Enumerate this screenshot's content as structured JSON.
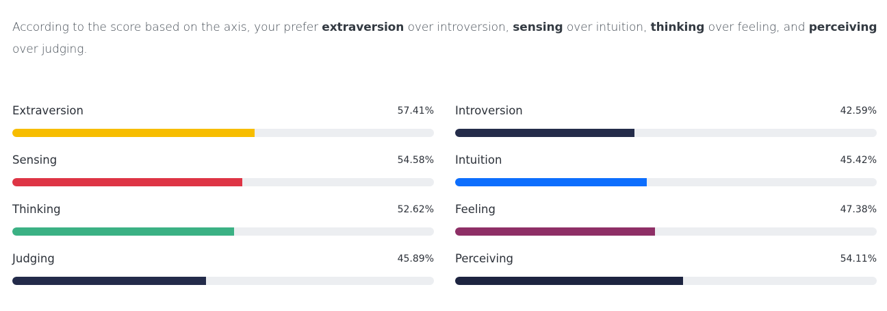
{
  "intro": [
    {
      "text": "According to the score based on the axis, your prefer ",
      "bold": false
    },
    {
      "text": "extraversion",
      "bold": true
    },
    {
      "text": " over introversion, ",
      "bold": false
    },
    {
      "text": "sensing",
      "bold": true
    },
    {
      "text": " over intuition, ",
      "bold": false
    },
    {
      "text": "thinking",
      "bold": true
    },
    {
      "text": " over feeling, and ",
      "bold": false
    },
    {
      "text": "perceiving",
      "bold": true
    },
    {
      "text": " over judging.",
      "bold": false
    }
  ],
  "bars": {
    "xlim": [
      0,
      100
    ],
    "items": [
      {
        "label": "Extraversion",
        "value": 57.41,
        "value_label": "57.41%",
        "color": "#f7bd00"
      },
      {
        "label": "Introversion",
        "value": 42.59,
        "value_label": "42.59%",
        "color": "#242c4a"
      },
      {
        "label": "Sensing",
        "value": 54.58,
        "value_label": "54.58%",
        "color": "#de3545"
      },
      {
        "label": "Intuition",
        "value": 45.42,
        "value_label": "45.42%",
        "color": "#0d6efd"
      },
      {
        "label": "Thinking",
        "value": 52.62,
        "value_label": "52.62%",
        "color": "#3bb184"
      },
      {
        "label": "Feeling",
        "value": 47.38,
        "value_label": "47.38%",
        "color": "#8e2f66"
      },
      {
        "label": "Judging",
        "value": 45.89,
        "value_label": "45.89%",
        "color": "#232b4a"
      },
      {
        "label": "Perceiving",
        "value": 54.11,
        "value_label": "54.11%",
        "color": "#1d2440"
      }
    ]
  }
}
